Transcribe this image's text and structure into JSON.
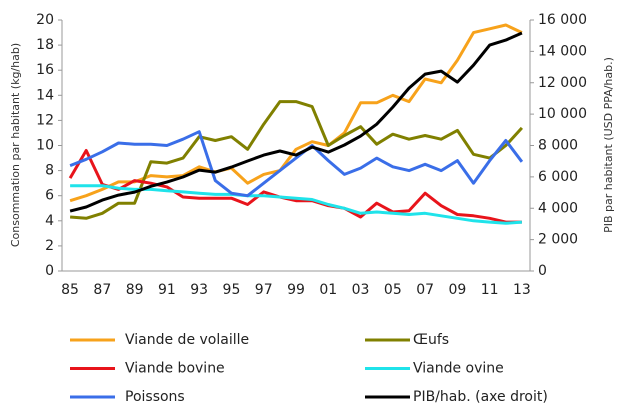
{
  "chart_data": {
    "type": "line",
    "categories": [
      "85",
      null,
      "87",
      null,
      "89",
      null,
      "91",
      null,
      "93",
      null,
      "95",
      null,
      "97",
      null,
      "99",
      null,
      "01",
      null,
      "03",
      null,
      "05",
      null,
      "07",
      null,
      "09",
      null,
      "11",
      null,
      "13"
    ],
    "ylabel": "Consommation par habitant (kg/hab)",
    "y2label": "PIB par habitant (USD PPA/hab.)",
    "ylim": [
      0,
      20
    ],
    "yticks": [
      0,
      2,
      4,
      6,
      8,
      10,
      12,
      14,
      16,
      18,
      20
    ],
    "y2lim": [
      0,
      16000
    ],
    "y2ticks": [
      0,
      {
        "value": 2000,
        "label": "2 000"
      },
      {
        "value": 4000,
        "label": "4 000"
      },
      {
        "value": 6000,
        "label": "6 000"
      },
      {
        "value": 8000,
        "label": "8 000"
      },
      {
        "value": 10000,
        "label": "10 000"
      },
      {
        "value": 12000,
        "label": "12 000"
      },
      {
        "value": 14000,
        "label": "14 000"
      },
      {
        "value": 16000,
        "label": "16 000"
      }
    ],
    "grid": false,
    "series": [
      {
        "name": "Viande de volaille",
        "color": "#f7a21b",
        "values": [
          5.6,
          6.0,
          6.5,
          7.1,
          7.1,
          7.6,
          7.5,
          7.6,
          8.3,
          7.9,
          8.2,
          7.0,
          7.7,
          8.0,
          9.7,
          10.3,
          10.0,
          11.0,
          13.4,
          13.4,
          14.0,
          13.5,
          15.3,
          15.0,
          16.8,
          19.0,
          19.3,
          19.6,
          19.0
        ]
      },
      {
        "name": "Œufs",
        "color": "#808000",
        "values": [
          4.3,
          4.2,
          4.6,
          5.4,
          5.4,
          8.7,
          8.6,
          9.0,
          10.7,
          10.4,
          10.7,
          9.7,
          11.7,
          13.5,
          13.5,
          13.1,
          10.0,
          10.8,
          11.5,
          10.1,
          10.9,
          10.5,
          10.8,
          10.5,
          11.2,
          9.3,
          9.0,
          10.0,
          11.4
        ]
      },
      {
        "name": "Viande bovine",
        "color": "#e8141b",
        "values": [
          7.4,
          9.6,
          6.9,
          6.5,
          7.2,
          7.0,
          6.7,
          5.9,
          5.8,
          5.8,
          5.8,
          5.3,
          6.3,
          5.9,
          5.6,
          5.6,
          5.2,
          5.0,
          4.3,
          5.4,
          4.7,
          4.8,
          6.2,
          5.2,
          4.5,
          4.4,
          4.2,
          3.9,
          3.9
        ]
      },
      {
        "name": "Viande ovine",
        "color": "#1fe3ea",
        "values": [
          6.8,
          6.8,
          6.8,
          6.6,
          6.5,
          6.5,
          6.4,
          6.3,
          6.2,
          6.1,
          6.1,
          6.0,
          6.0,
          5.9,
          5.8,
          5.7,
          5.3,
          5.0,
          4.6,
          4.7,
          4.6,
          4.5,
          4.6,
          4.4,
          4.2,
          4.0,
          3.9,
          3.8,
          3.9
        ]
      },
      {
        "name": "Poissons",
        "color": "#3a6ee8",
        "values": [
          8.4,
          8.9,
          9.5,
          10.2,
          10.1,
          10.1,
          10.0,
          10.5,
          11.1,
          7.2,
          6.2,
          6.0,
          7.0,
          8.0,
          9.0,
          10.0,
          8.8,
          7.7,
          8.2,
          9.0,
          8.3,
          8.0,
          8.5,
          8.0,
          8.8,
          7.0,
          8.8,
          10.4,
          8.7
        ]
      },
      {
        "name": "PIB/hab. (axe droit)",
        "color": "#000000",
        "axis": "y2",
        "values": [
          3820,
          4080,
          4520,
          4840,
          5030,
          5400,
          5670,
          5990,
          6430,
          6300,
          6620,
          7010,
          7390,
          7650,
          7390,
          7900,
          7580,
          8030,
          8600,
          9360,
          10450,
          11660,
          12550,
          12740,
          12040,
          13120,
          14400,
          14720,
          15170
        ]
      }
    ]
  }
}
